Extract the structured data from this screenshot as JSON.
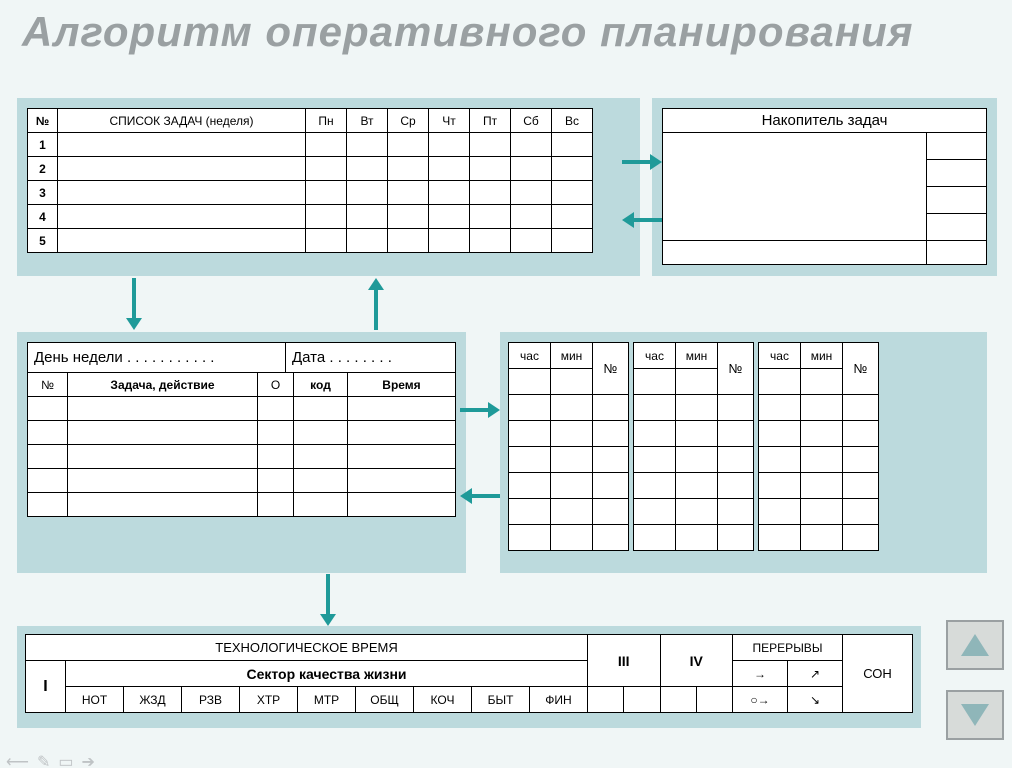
{
  "title": "Алгоритм оперативного планирования",
  "colors": {
    "panel": "#bcdadd",
    "bg": "#f0f6f6",
    "title": "#9aa0a2",
    "arrow": "#1f9a99",
    "btn": "#d7dbd9"
  },
  "weekly": {
    "cols": [
      "№",
      "СПИСОК  ЗАДАЧ (неделя)",
      "Пн",
      "Вт",
      "Ср",
      "Чт",
      "Пт",
      "Сб",
      "Вс"
    ],
    "rows": [
      "1",
      "2",
      "3",
      "4",
      "5"
    ]
  },
  "accumulator": {
    "title": "Накопитель задач"
  },
  "day": {
    "weekday_label": "День недели . . . . . . . . . . .",
    "date_label": "Дата . . . . . . . .",
    "cols": [
      "№",
      "Задача, действие",
      "О",
      "код",
      "Время"
    ],
    "blank_rows": 5
  },
  "mini": {
    "cols": [
      "час",
      "мин",
      "№"
    ],
    "blank_rows": 6,
    "count": 3
  },
  "tech": {
    "top": "ТЕХНОЛОГИЧЕСКОЕ  ВРЕМЯ",
    "breaks": "ПЕРЕРЫВЫ",
    "sleep": "СОН",
    "sector": "Сектор качества жизни",
    "roman": [
      "I",
      "III",
      "IV"
    ],
    "cats": [
      "НОТ",
      "ЖЗД",
      "РЗВ",
      "ХТР",
      "МТР",
      "ОБЩ",
      "КОЧ",
      "БЫТ",
      "ФИН"
    ],
    "break_symbols": [
      [
        "→",
        "↗"
      ],
      [
        "○→",
        "↘"
      ]
    ]
  },
  "nav": {
    "up": "up",
    "down": "down"
  },
  "toolbar_icons": [
    "⟵",
    "✎",
    "▭",
    "➔"
  ]
}
